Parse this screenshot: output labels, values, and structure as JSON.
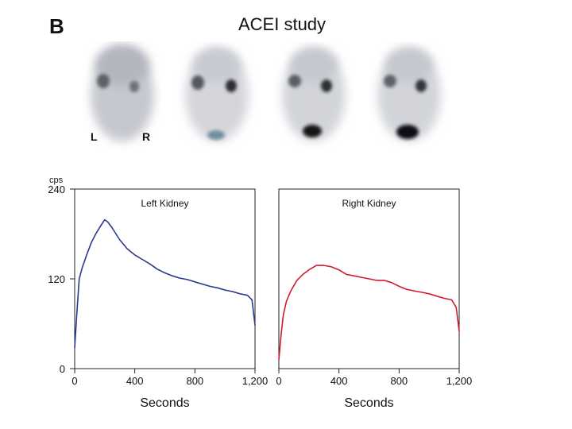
{
  "panel_letter": "B",
  "title": "ACEI study",
  "scan_labels": {
    "left": "L",
    "right": "R"
  },
  "colors": {
    "left_curve": "#2b3a8e",
    "right_curve": "#d21a2a"
  },
  "chart_data": [
    {
      "type": "line",
      "title": "Left Kidney",
      "xlabel": "Seconds",
      "ylabel": "cps",
      "y_unit": "cps",
      "xlim": [
        0,
        1200
      ],
      "ylim": [
        0,
        240
      ],
      "xticks": [
        0,
        400,
        800,
        1200
      ],
      "xtick_labels": [
        "0",
        "400",
        "800",
        "1,200"
      ],
      "yticks": [
        0,
        120,
        240
      ],
      "ytick_labels": [
        "0",
        "120",
        "240"
      ],
      "series": [
        {
          "name": "Left Kidney",
          "color": "#2b3a8e",
          "x": [
            0,
            15,
            30,
            50,
            80,
            110,
            140,
            170,
            200,
            220,
            250,
            300,
            350,
            400,
            450,
            500,
            550,
            600,
            650,
            700,
            750,
            800,
            850,
            900,
            950,
            1000,
            1050,
            1100,
            1150,
            1180,
            1200
          ],
          "y": [
            28,
            75,
            120,
            135,
            152,
            168,
            180,
            190,
            199,
            196,
            188,
            172,
            160,
            152,
            146,
            140,
            133,
            128,
            124,
            121,
            119,
            116,
            113,
            110,
            108,
            105,
            103,
            100,
            98,
            92,
            58
          ]
        }
      ]
    },
    {
      "type": "line",
      "title": "Right Kidney",
      "xlabel": "Seconds",
      "xlim": [
        0,
        1200
      ],
      "ylim": [
        0,
        240
      ],
      "xticks": [
        0,
        400,
        800,
        1200
      ],
      "xtick_labels": [
        "0",
        "400",
        "800",
        "1,200"
      ],
      "series": [
        {
          "name": "Right Kidney",
          "color": "#d21a2a",
          "x": [
            0,
            15,
            30,
            50,
            80,
            120,
            160,
            200,
            250,
            300,
            350,
            400,
            450,
            500,
            550,
            600,
            650,
            700,
            750,
            800,
            850,
            900,
            950,
            1000,
            1050,
            1100,
            1150,
            1180,
            1200
          ],
          "y": [
            12,
            45,
            72,
            90,
            104,
            118,
            126,
            132,
            138,
            138,
            136,
            132,
            126,
            124,
            122,
            120,
            118,
            118,
            115,
            110,
            106,
            104,
            102,
            100,
            97,
            94,
            92,
            82,
            50
          ]
        }
      ]
    }
  ]
}
